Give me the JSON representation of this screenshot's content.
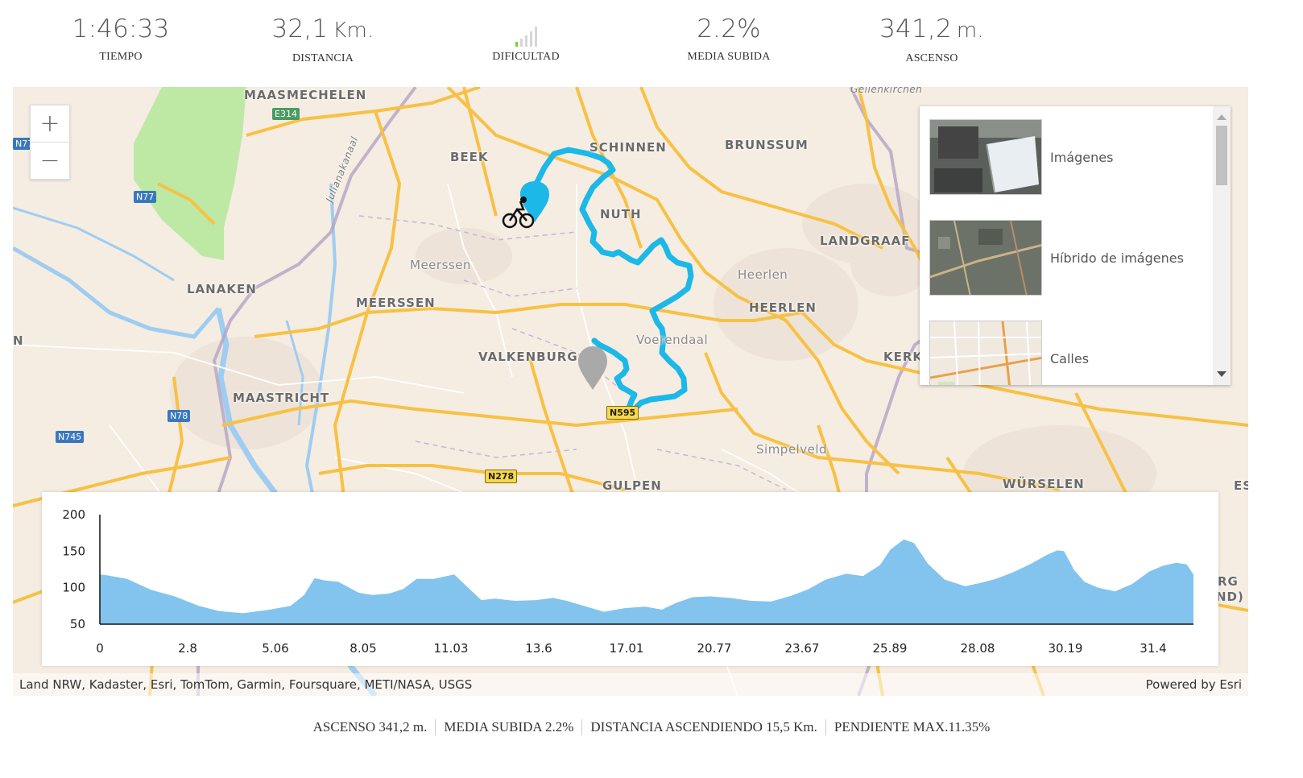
{
  "stats": {
    "time": {
      "value": "1:46:33",
      "label": "TIEMPO"
    },
    "distance": {
      "value": "32,1",
      "unit": "Km.",
      "label": "DISTANCIA"
    },
    "difficulty": {
      "label": "DIFICULTAD",
      "level": 1,
      "max_level": 5,
      "active_color": "#7bd12c"
    },
    "avg_climb": {
      "value": "2.2%",
      "label": "MEDIA SUBIDA"
    },
    "ascent": {
      "value": "341,2",
      "unit": "m.",
      "label": "ASCENSO"
    }
  },
  "map": {
    "zoom_in": "+",
    "zoom_out": "−",
    "labels": {
      "maasmechelen": "MAASMECHELEN",
      "beek": "BEEK",
      "schinnen": "SCHINNEN",
      "brunssum": "BRUNSSUM",
      "nuth": "NUTH",
      "landgraaf": "LANDGRAAF",
      "lanaken": "LANAKEN",
      "meerssen_town": "Meerssen",
      "meerssen": "MEERSSEN",
      "heerlen_town": "Heerlen",
      "heerlen": "HEERLEN",
      "valkenburg": "VALKENBURG",
      "voerendaal": "Voerendaal",
      "kerk": "KERK",
      "maastricht": "MAASTRICHT",
      "simpelveld": "Simpelveld",
      "gulpen": "GULPEN",
      "wurselen": "WÜRSELEN",
      "gellenkirchen": "Geilenkirchen",
      "julianakanaal": "Julianakanaal",
      "edge_n": "N",
      "edge_es": "ES",
      "edge_rg": "RG",
      "edge_nd": "ND)"
    },
    "shields": {
      "e314": "E314",
      "n77a": "N77",
      "n77b": "N77",
      "n78": "N78",
      "n745": "N745",
      "n595": "N595",
      "n278": "N278"
    },
    "route_color": "#1bb8e8",
    "basemap_gallery": [
      {
        "name": "Imágenes"
      },
      {
        "name": "Híbrido de imágenes"
      },
      {
        "name": "Calles"
      }
    ],
    "attribution_left": "Land NRW, Kadaster, Esri, TomTom, Garmin, Foursquare, METI/NASA, USGS",
    "attribution_right": "Powered by Esri"
  },
  "chart_data": {
    "type": "area",
    "title": "",
    "xlabel": "",
    "ylabel": "",
    "x_tick_labels": [
      "0",
      "2.8",
      "5.06",
      "8.05",
      "11.03",
      "13.6",
      "17.01",
      "20.77",
      "23.67",
      "25.89",
      "28.08",
      "30.19",
      "31.4"
    ],
    "y_ticks": [
      50,
      100,
      150,
      200
    ],
    "ylim": [
      50,
      200
    ],
    "xlim": [
      0,
      32.1
    ],
    "fill_color": "#82c4ee",
    "series": [
      {
        "x": [
          0,
          0.2,
          0.8,
          1.5,
          2.2,
          2.9,
          3.5,
          4.2,
          5.0,
          5.6,
          6.0,
          6.3,
          6.6,
          7.0,
          7.6,
          8.0,
          8.5,
          8.9,
          9.3,
          9.8,
          10.4,
          10.9,
          11.2,
          11.6,
          12.2,
          12.8,
          13.3,
          13.7,
          14.2,
          14.8,
          15.4,
          16.0,
          16.5,
          16.9,
          17.4,
          17.9,
          18.5,
          19.1,
          19.7,
          20.3,
          20.8,
          21.3,
          21.9,
          22.4,
          22.9,
          23.2,
          23.6,
          23.9,
          24.3,
          24.8,
          25.4,
          25.9,
          26.3,
          26.8,
          27.3,
          27.8,
          28.1,
          28.3,
          28.6,
          28.9,
          29.3,
          29.8,
          30.3,
          30.8,
          31.2,
          31.6,
          31.9,
          32.1
        ],
        "y": [
          118,
          117,
          112,
          97,
          88,
          75,
          68,
          65,
          70,
          75,
          90,
          113,
          110,
          108,
          93,
          90,
          92,
          98,
          112,
          112,
          118,
          96,
          83,
          85,
          82,
          83,
          86,
          82,
          75,
          67,
          72,
          74,
          70,
          79,
          87,
          88,
          86,
          82,
          81,
          89,
          98,
          111,
          119,
          116,
          131,
          152,
          166,
          161,
          133,
          111,
          102,
          107,
          112,
          121,
          132,
          145,
          151,
          150,
          124,
          108,
          100,
          95,
          105,
          122,
          130,
          134,
          132,
          118
        ]
      }
    ]
  },
  "summary": [
    {
      "text": "ASCENSO 341,2 m."
    },
    {
      "text": "MEDIA SUBIDA 2.2%"
    },
    {
      "text": "DISTANCIA ASCENDIENDO 15,5 Km."
    },
    {
      "text": "PENDIENTE MAX.11.35%"
    }
  ]
}
